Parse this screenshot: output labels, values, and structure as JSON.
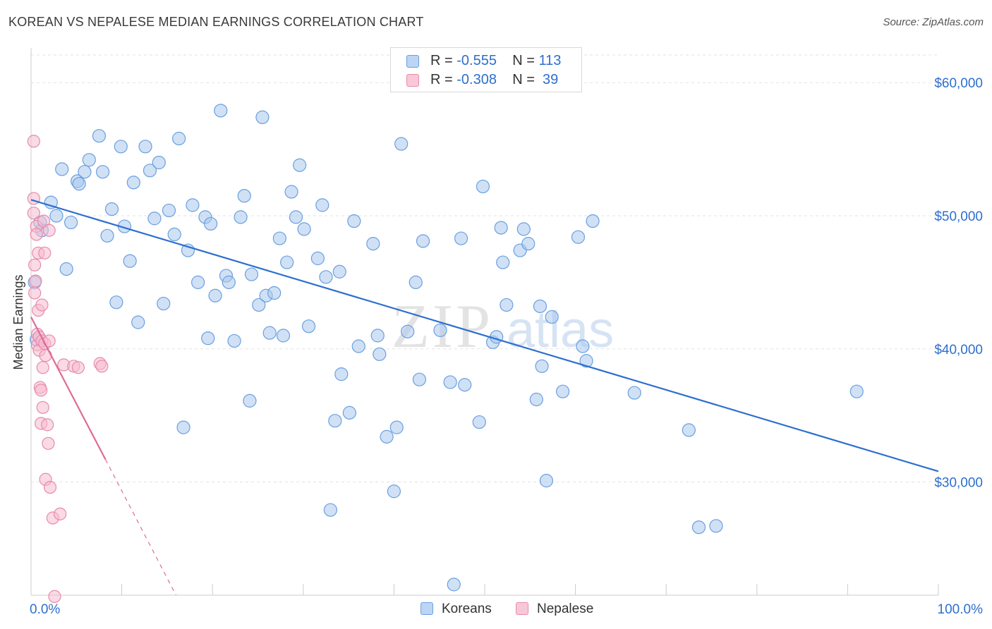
{
  "title": "KOREAN VS NEPALESE MEDIAN EARNINGS CORRELATION CHART",
  "source": "Source: ZipAtlas.com",
  "watermark": {
    "zip": "ZIP",
    "atlas": "atlas"
  },
  "legend": {
    "korean": {
      "r_label": "R =",
      "r_value": "-0.555",
      "n_label": "N =",
      "n_value": "113"
    },
    "nepalese": {
      "r_label": "R =",
      "r_value": "-0.308",
      "n_label": "N =",
      "n_value": "39"
    }
  },
  "bottom_legend": {
    "korean": "Koreans",
    "nepalese": "Nepalese"
  },
  "colors": {
    "korean_fill": "#aac8ef",
    "korean_stroke": "#6a9fdf",
    "korean_line": "#2d6fcf",
    "nepalese_fill": "#f6bcd0",
    "nepalese_stroke": "#e88aaa",
    "nepalese_line": "#e06a98",
    "tick_label": "#2d6fcf",
    "grid": "#e2e2e2"
  },
  "chart_data": {
    "type": "scatter",
    "title": "KOREAN VS NEPALESE MEDIAN EARNINGS CORRELATION CHART",
    "xlabel": "",
    "ylabel": "Median Earnings",
    "xlim": [
      0,
      100
    ],
    "ylim": [
      21500,
      62500
    ],
    "x_tick_labels": {
      "left": "0.0%",
      "right": "100.0%"
    },
    "y_ticks": [
      {
        "value": 60000,
        "label": "$60,000"
      },
      {
        "value": 50000,
        "label": "$50,000"
      },
      {
        "value": 40000,
        "label": "$40,000"
      },
      {
        "value": 30000,
        "label": "$30,000"
      }
    ],
    "grid": true,
    "legend_position": "top-center",
    "series": [
      {
        "name": "Koreans",
        "trend": {
          "x": [
            0,
            100
          ],
          "y": [
            51200,
            30800
          ]
        },
        "points": [
          [
            0.4,
            45000
          ],
          [
            0.6,
            40700
          ],
          [
            1.0,
            49500
          ],
          [
            1.2,
            48900
          ],
          [
            2.2,
            51000
          ],
          [
            2.8,
            50000
          ],
          [
            3.4,
            53500
          ],
          [
            3.9,
            46000
          ],
          [
            4.4,
            49500
          ],
          [
            5.1,
            52600
          ],
          [
            5.3,
            52400
          ],
          [
            5.9,
            53300
          ],
          [
            6.4,
            54200
          ],
          [
            7.5,
            56000
          ],
          [
            7.9,
            53300
          ],
          [
            8.4,
            48500
          ],
          [
            8.9,
            50500
          ],
          [
            9.4,
            43500
          ],
          [
            9.9,
            55200
          ],
          [
            10.3,
            49200
          ],
          [
            10.9,
            46600
          ],
          [
            11.3,
            52500
          ],
          [
            11.8,
            42000
          ],
          [
            12.6,
            55200
          ],
          [
            13.1,
            53400
          ],
          [
            13.6,
            49800
          ],
          [
            14.1,
            54000
          ],
          [
            14.6,
            43400
          ],
          [
            15.2,
            50400
          ],
          [
            15.8,
            48600
          ],
          [
            16.3,
            55800
          ],
          [
            16.8,
            34100
          ],
          [
            17.3,
            47400
          ],
          [
            17.8,
            50800
          ],
          [
            18.4,
            45000
          ],
          [
            19.2,
            49900
          ],
          [
            19.5,
            40800
          ],
          [
            19.8,
            49400
          ],
          [
            20.3,
            44000
          ],
          [
            20.9,
            57900
          ],
          [
            21.5,
            45500
          ],
          [
            21.8,
            45000
          ],
          [
            22.4,
            40600
          ],
          [
            23.1,
            49900
          ],
          [
            23.5,
            51500
          ],
          [
            24.1,
            36100
          ],
          [
            24.3,
            45600
          ],
          [
            25.1,
            43300
          ],
          [
            25.5,
            57400
          ],
          [
            25.9,
            44000
          ],
          [
            26.3,
            41200
          ],
          [
            26.8,
            44200
          ],
          [
            27.4,
            48300
          ],
          [
            27.8,
            41000
          ],
          [
            28.2,
            46500
          ],
          [
            28.7,
            51800
          ],
          [
            29.2,
            49900
          ],
          [
            29.6,
            53800
          ],
          [
            30.1,
            49000
          ],
          [
            30.6,
            41700
          ],
          [
            31.6,
            46800
          ],
          [
            32.1,
            50800
          ],
          [
            32.5,
            45400
          ],
          [
            33.0,
            27900
          ],
          [
            33.5,
            34600
          ],
          [
            34.0,
            45800
          ],
          [
            34.2,
            38100
          ],
          [
            35.1,
            35200
          ],
          [
            35.6,
            49600
          ],
          [
            36.1,
            40200
          ],
          [
            37.7,
            47900
          ],
          [
            38.2,
            41000
          ],
          [
            38.4,
            39600
          ],
          [
            39.2,
            33400
          ],
          [
            40.0,
            29300
          ],
          [
            40.3,
            34100
          ],
          [
            40.8,
            55400
          ],
          [
            41.5,
            41300
          ],
          [
            42.4,
            45000
          ],
          [
            42.8,
            37700
          ],
          [
            43.2,
            48100
          ],
          [
            45.1,
            41400
          ],
          [
            46.2,
            37500
          ],
          [
            46.6,
            22300
          ],
          [
            47.4,
            48300
          ],
          [
            47.8,
            37300
          ],
          [
            49.4,
            34500
          ],
          [
            49.8,
            52200
          ],
          [
            50.9,
            40500
          ],
          [
            51.3,
            40900
          ],
          [
            51.8,
            49100
          ],
          [
            52.0,
            46500
          ],
          [
            52.4,
            43300
          ],
          [
            53.9,
            47400
          ],
          [
            54.3,
            49000
          ],
          [
            54.8,
            47900
          ],
          [
            55.7,
            36200
          ],
          [
            56.1,
            43200
          ],
          [
            56.3,
            38700
          ],
          [
            56.8,
            30100
          ],
          [
            57.4,
            42400
          ],
          [
            58.6,
            36800
          ],
          [
            60.3,
            48400
          ],
          [
            60.8,
            40200
          ],
          [
            61.2,
            39100
          ],
          [
            61.9,
            49600
          ],
          [
            66.5,
            36700
          ],
          [
            72.5,
            33900
          ],
          [
            73.6,
            26600
          ],
          [
            75.5,
            26700
          ],
          [
            91.0,
            36800
          ]
        ]
      },
      {
        "name": "Nepalese",
        "trend": {
          "x": [
            0,
            8.2
          ],
          "y": [
            42400,
            31700
          ],
          "dashed_x": [
            8.2,
            17.5
          ],
          "dashed_y": [
            31700,
            19500
          ]
        },
        "points": [
          [
            0.3,
            55600
          ],
          [
            0.3,
            51300
          ],
          [
            0.3,
            50200
          ],
          [
            0.4,
            46300
          ],
          [
            0.4,
            44200
          ],
          [
            0.5,
            45100
          ],
          [
            0.6,
            49200
          ],
          [
            0.6,
            48600
          ],
          [
            0.7,
            41100
          ],
          [
            0.7,
            40300
          ],
          [
            0.8,
            47200
          ],
          [
            0.8,
            42900
          ],
          [
            0.9,
            40900
          ],
          [
            0.9,
            39900
          ],
          [
            1.0,
            37100
          ],
          [
            1.1,
            34400
          ],
          [
            1.1,
            36900
          ],
          [
            1.2,
            40600
          ],
          [
            1.2,
            43300
          ],
          [
            1.3,
            38600
          ],
          [
            1.3,
            35600
          ],
          [
            1.4,
            49600
          ],
          [
            1.5,
            47200
          ],
          [
            1.5,
            40400
          ],
          [
            1.6,
            30200
          ],
          [
            1.6,
            39500
          ],
          [
            1.8,
            34300
          ],
          [
            1.9,
            32900
          ],
          [
            2.0,
            48900
          ],
          [
            2.0,
            40600
          ],
          [
            2.1,
            29600
          ],
          [
            2.4,
            27300
          ],
          [
            2.6,
            21400
          ],
          [
            3.2,
            27600
          ],
          [
            3.6,
            38800
          ],
          [
            4.7,
            38700
          ],
          [
            5.2,
            38600
          ],
          [
            7.6,
            38900
          ],
          [
            7.8,
            38700
          ]
        ]
      }
    ]
  }
}
